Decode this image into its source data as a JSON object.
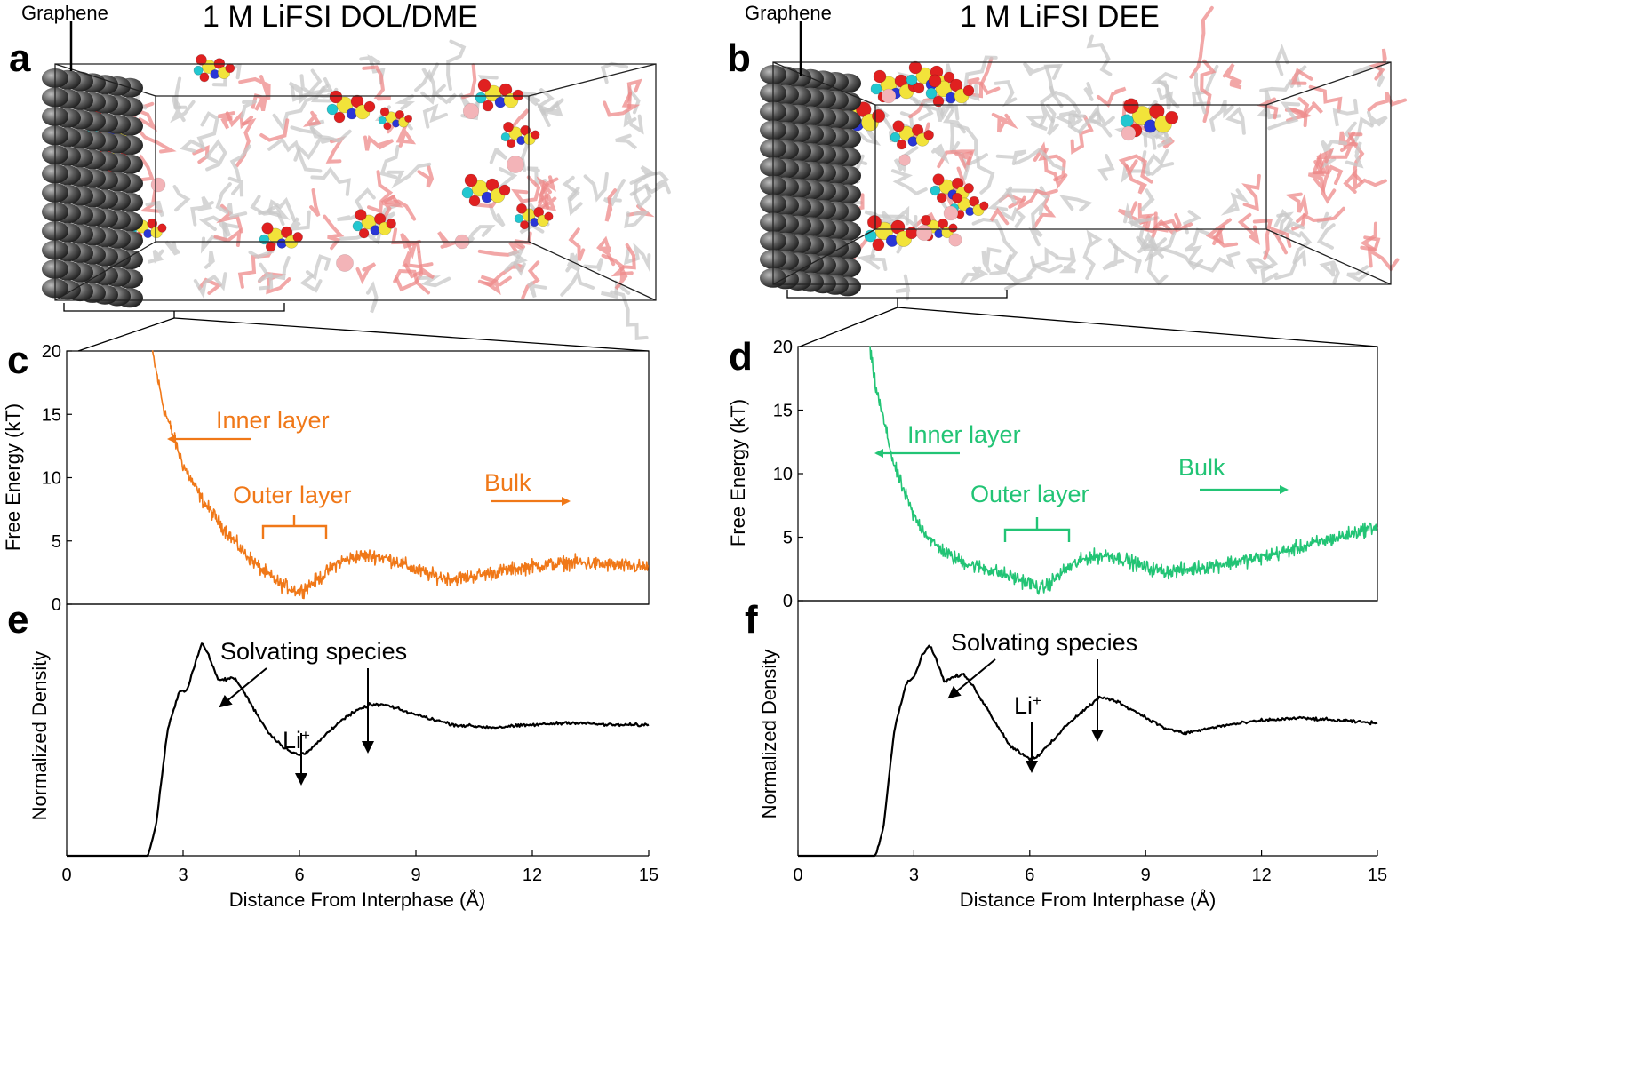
{
  "panels": [
    {
      "letter": "a",
      "title": "1 M LiFSI DOL/DME",
      "label": "Graphene"
    },
    {
      "letter": "b",
      "title": "1 M LiFSI DEE",
      "label": "Graphene"
    },
    {
      "letter": "c"
    },
    {
      "letter": "d"
    },
    {
      "letter": "e"
    },
    {
      "letter": "f"
    }
  ],
  "colors": {
    "orange": "#F07818",
    "green": "#22C475",
    "black": "#000000",
    "graphene": "#555555",
    "red": "#E02020",
    "yellow": "#F2E33A",
    "blue": "#2A36D6",
    "cyan": "#22C7D0",
    "pink": "#F3B4B8",
    "stick": "#C8C8C8"
  },
  "chart_data": [
    {
      "id": "c",
      "type": "line",
      "xlabel": "Distance From Interphase (Å)",
      "ylabel": "Free Energy (kT)",
      "xlim": [
        0,
        15
      ],
      "ylim": [
        0,
        20
      ],
      "xticks": [
        0,
        3,
        6,
        9,
        12,
        15
      ],
      "yticks": [
        0,
        5,
        10,
        15,
        20
      ],
      "series_color": "#F07818",
      "x": [
        2.2,
        2.5,
        3.0,
        3.5,
        4.0,
        4.5,
        5.0,
        5.5,
        6.0,
        6.5,
        7.0,
        7.5,
        8.0,
        8.5,
        9.0,
        9.5,
        10,
        11,
        12,
        13,
        14,
        15
      ],
      "y": [
        20,
        15.5,
        11,
        8.2,
        6.2,
        4.3,
        2.8,
        1.6,
        1.0,
        2.0,
        3.3,
        3.8,
        3.8,
        3.4,
        2.7,
        2.2,
        2.0,
        2.5,
        3.0,
        3.3,
        3.1,
        2.9
      ],
      "annotations": [
        {
          "text": "Inner layer",
          "arrow": "left"
        },
        {
          "text": "Outer layer",
          "bracket": [
            5.1,
            6.7
          ]
        },
        {
          "text": "Bulk",
          "arrow": "right"
        }
      ]
    },
    {
      "id": "d",
      "type": "line",
      "xlabel": "Distance From Interphase (Å)",
      "ylabel": "Free Energy (kT)",
      "xlim": [
        0,
        15
      ],
      "ylim": [
        0,
        20
      ],
      "xticks": [
        0,
        3,
        6,
        9,
        12,
        15
      ],
      "yticks": [
        0,
        5,
        10,
        15,
        20
      ],
      "series_color": "#22C475",
      "x": [
        1.85,
        2.0,
        2.5,
        3.0,
        3.5,
        4.0,
        4.5,
        5.0,
        5.5,
        6.0,
        6.3,
        6.6,
        7.0,
        7.5,
        8.0,
        8.5,
        9.0,
        9.5,
        10,
        11,
        12,
        13,
        14,
        15
      ],
      "y": [
        20,
        17,
        10.5,
        6.6,
        4.5,
        3.4,
        2.8,
        2.4,
        1.9,
        1.4,
        0.9,
        1.6,
        2.6,
        3.4,
        3.6,
        3.2,
        2.6,
        2.3,
        2.4,
        2.9,
        3.4,
        4.2,
        5.0,
        5.9
      ],
      "annotations": [
        {
          "text": "Inner layer",
          "arrow": "left"
        },
        {
          "text": "Outer layer",
          "bracket": [
            5.4,
            7.0
          ]
        },
        {
          "text": "Bulk",
          "arrow": "right"
        }
      ]
    },
    {
      "id": "e",
      "type": "line",
      "xlabel": "Distance From Interphase (Å)",
      "ylabel": "Normalized Density",
      "xlim": [
        0,
        15
      ],
      "xticks": [
        0,
        3,
        6,
        9,
        12,
        15
      ],
      "series_color": "#000000",
      "x": [
        0,
        2.1,
        2.3,
        2.6,
        2.9,
        3.1,
        3.3,
        3.5,
        3.7,
        3.9,
        4.1,
        4.3,
        4.5,
        4.8,
        5.2,
        5.6,
        6.0,
        6.2,
        6.6,
        7.0,
        7.4,
        7.8,
        8.2,
        8.8,
        9.5,
        10,
        11,
        12,
        13,
        14,
        15
      ],
      "y": [
        0,
        0,
        0.12,
        0.5,
        0.65,
        0.66,
        0.76,
        0.85,
        0.78,
        0.7,
        0.7,
        0.71,
        0.67,
        0.59,
        0.49,
        0.43,
        0.4,
        0.41,
        0.47,
        0.53,
        0.57,
        0.6,
        0.6,
        0.57,
        0.54,
        0.52,
        0.51,
        0.52,
        0.53,
        0.52,
        0.52
      ],
      "annotations": [
        {
          "text": "Solvating species"
        },
        {
          "text": "Li+"
        }
      ]
    },
    {
      "id": "f",
      "type": "line",
      "xlabel": "Distance From Interphase (Å)",
      "ylabel": "Normalized Density",
      "xlim": [
        0,
        15
      ],
      "xticks": [
        0,
        3,
        6,
        9,
        12,
        15
      ],
      "series_color": "#000000",
      "x": [
        0,
        2.0,
        2.2,
        2.5,
        2.8,
        3.0,
        3.2,
        3.4,
        3.6,
        3.8,
        4.0,
        4.3,
        4.6,
        5.0,
        5.5,
        6.0,
        6.2,
        6.6,
        7.0,
        7.4,
        7.8,
        8.2,
        8.8,
        9.5,
        10,
        11,
        12,
        13,
        14,
        15
      ],
      "y": [
        0,
        0,
        0.1,
        0.5,
        0.68,
        0.7,
        0.78,
        0.83,
        0.76,
        0.68,
        0.7,
        0.71,
        0.65,
        0.55,
        0.43,
        0.38,
        0.39,
        0.45,
        0.52,
        0.57,
        0.62,
        0.61,
        0.56,
        0.5,
        0.48,
        0.51,
        0.53,
        0.54,
        0.53,
        0.52
      ],
      "annotations": [
        {
          "text": "Solvating species"
        },
        {
          "text": "Li+"
        }
      ]
    }
  ]
}
